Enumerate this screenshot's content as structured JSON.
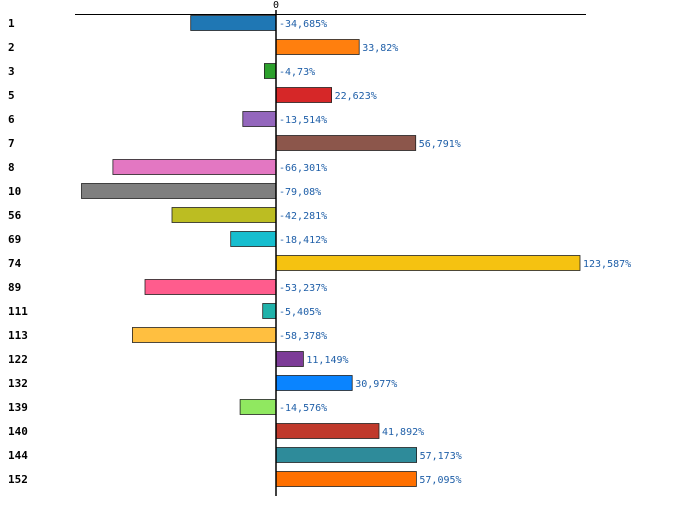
{
  "chart_data": {
    "type": "bar",
    "orientation": "horizontal",
    "title": "",
    "xlabel": "",
    "ylabel": "",
    "zero_tick_label": "0",
    "xlim": [
      -100,
      140
    ],
    "grid": false,
    "categories": [
      "1",
      "2",
      "3",
      "5",
      "6",
      "7",
      "8",
      "10",
      "56",
      "69",
      "74",
      "89",
      "111",
      "113",
      "122",
      "132",
      "139",
      "140",
      "144",
      "152"
    ],
    "values": [
      -34.685,
      33.82,
      -4.73,
      22.623,
      -13.514,
      56.791,
      -66.301,
      -79.08,
      -42.281,
      -18.412,
      123.587,
      -53.237,
      -5.405,
      -58.378,
      11.149,
      30.977,
      -14.576,
      41.892,
      57.173,
      57.095
    ],
    "value_labels": [
      "-34,685%",
      "33,82%",
      "-4,73%",
      "22,623%",
      "-13,514%",
      "56,791%",
      "-66,301%",
      "-79,08%",
      "-42,281%",
      "-18,412%",
      "123,587%",
      "-53,237%",
      "-5,405%",
      "-58,378%",
      "11,149%",
      "30,977%",
      "-14,576%",
      "41,892%",
      "57,173%",
      "57,095%"
    ],
    "colors": [
      "#1f77b4",
      "#ff7f0e",
      "#2ca02c",
      "#d62728",
      "#9467bd",
      "#8c564b",
      "#e377c2",
      "#7f7f7f",
      "#bcbd22",
      "#17becf",
      "#f5c211",
      "#ff5c8d",
      "#20b2aa",
      "#ffbf40",
      "#7d3c98",
      "#0a84ff",
      "#90e860",
      "#c0392b",
      "#2e8b9a",
      "#ff7000"
    ]
  }
}
